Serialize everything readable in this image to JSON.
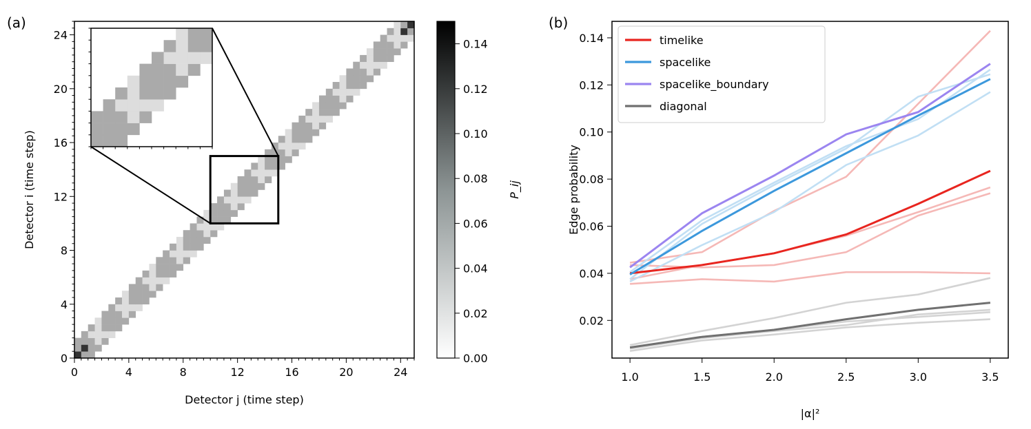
{
  "panel_a_label": "(a)",
  "panel_b_label": "(b)",
  "chart_data": [
    {
      "type": "heatmap",
      "panel": "(a)",
      "xlabel": "Detector j (time step)",
      "ylabel": "Detector i (time step)",
      "xlim": [
        0,
        25
      ],
      "ylim": [
        0,
        25
      ],
      "xticks": [
        "0",
        "4",
        "8",
        "12",
        "16",
        "20",
        "24"
      ],
      "yticks": [
        "0",
        "4",
        "8",
        "12",
        "16",
        "20",
        "24"
      ],
      "colorbar": {
        "label": "P_ij",
        "min": 0.0,
        "max": 0.15,
        "ticks": [
          "0.00",
          "0.02",
          "0.04",
          "0.06",
          "0.08",
          "0.10",
          "0.12",
          "0.14"
        ]
      },
      "structure": {
        "diagonal_value_range": [
          0.02,
          0.05
        ],
        "corner_blocks_value_approx": 0.12,
        "off_diagonal_background_approx": 0.003
      },
      "inset": {
        "zoom_region_x": [
          10,
          15
        ],
        "zoom_region_y": [
          10,
          15
        ]
      },
      "colors": {
        "low": "#ffffff",
        "high": "#000000"
      }
    },
    {
      "type": "line",
      "panel": "(b)",
      "xlabel": "|α|²",
      "ylabel": "Edge probability",
      "x": [
        1.0,
        1.5,
        2.0,
        2.5,
        3.0,
        3.5
      ],
      "xlim": [
        0.875,
        3.625
      ],
      "ylim": [
        0.004,
        0.147
      ],
      "xticks": [
        "1.0",
        "1.5",
        "2.0",
        "2.5",
        "3.0",
        "3.5"
      ],
      "yticks": [
        "0.02",
        "0.04",
        "0.06",
        "0.08",
        "0.10",
        "0.12",
        "0.14"
      ],
      "legend_position": "top-left",
      "series": [
        {
          "name": "timelike",
          "color": "#e8251f",
          "values": [
            0.04,
            0.0435,
            0.0485,
            0.0565,
            0.0695,
            0.0835
          ]
        },
        {
          "name": "spacelike",
          "color": "#3c98dc",
          "values": [
            0.0395,
            0.058,
            0.075,
            0.091,
            0.107,
            0.1225
          ]
        },
        {
          "name": "spacelike_boundary",
          "color": "#9b85f0",
          "values": [
            0.0425,
            0.0655,
            0.0815,
            0.099,
            0.1085,
            0.129
          ]
        },
        {
          "name": "diagonal",
          "color": "#707070",
          "values": [
            0.0085,
            0.013,
            0.016,
            0.0205,
            0.0245,
            0.0275
          ]
        }
      ],
      "faint_series": [
        {
          "group": "timelike",
          "color": "#f5b8b6",
          "values": [
            0.0445,
            0.049,
            0.0665,
            0.081,
            0.112,
            0.143
          ]
        },
        {
          "group": "timelike",
          "color": "#f5b8b6",
          "values": [
            0.0435,
            0.0425,
            0.0435,
            0.049,
            0.0645,
            0.074
          ]
        },
        {
          "group": "timelike",
          "color": "#f5b8b6",
          "values": [
            0.0355,
            0.0375,
            0.0365,
            0.0405,
            0.0405,
            0.04
          ]
        },
        {
          "group": "timelike",
          "color": "#f5b8b6",
          "values": [
            0.0375,
            0.0435,
            0.0485,
            0.056,
            0.066,
            0.0765
          ]
        },
        {
          "group": "spacelike",
          "color": "#c1dff4",
          "values": [
            0.0375,
            0.061,
            0.0775,
            0.093,
            0.115,
            0.1245
          ]
        },
        {
          "group": "spacelike",
          "color": "#c1dff4",
          "values": [
            0.0365,
            0.052,
            0.066,
            0.086,
            0.0985,
            0.117
          ]
        },
        {
          "group": "spacelike",
          "color": "#c1dff4",
          "values": [
            0.0405,
            0.0625,
            0.0785,
            0.094,
            0.1055,
            0.1265
          ]
        },
        {
          "group": "diagonal",
          "color": "#d3d3d3",
          "values": [
            0.0095,
            0.0155,
            0.021,
            0.0275,
            0.031,
            0.038
          ]
        },
        {
          "group": "diagonal",
          "color": "#d3d3d3",
          "values": [
            0.008,
            0.0125,
            0.0155,
            0.018,
            0.0225,
            0.0245
          ]
        },
        {
          "group": "diagonal",
          "color": "#d3d3d3",
          "values": [
            0.007,
            0.0115,
            0.014,
            0.017,
            0.019,
            0.0205
          ]
        },
        {
          "group": "diagonal",
          "color": "#d3d3d3",
          "values": [
            0.0085,
            0.013,
            0.016,
            0.0195,
            0.0215,
            0.0235
          ]
        }
      ]
    }
  ]
}
